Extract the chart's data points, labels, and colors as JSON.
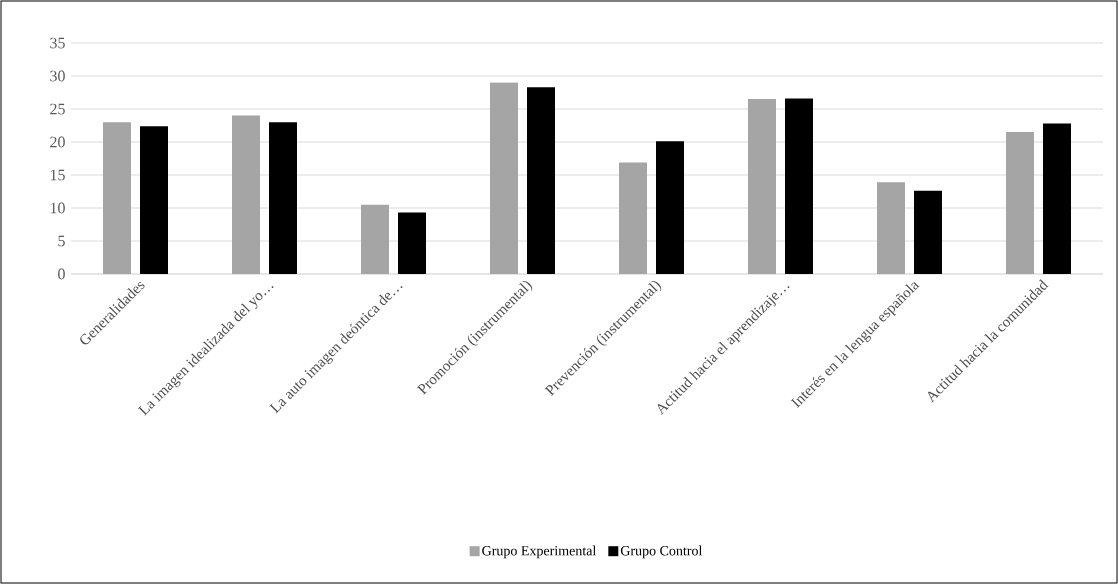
{
  "chart_data": {
    "type": "bar",
    "categories": [
      "Generalidades",
      "La imagen idealizada del yo…",
      "La auto imagen deóntica de…",
      "Promoción (instrumental)",
      "Prevención (instrumental)",
      "Actitud hacia el aprendizaje…",
      "Interés en la lengua española",
      "Actitud hacia la comunidad"
    ],
    "series": [
      {
        "name": "Grupo Experimental",
        "color": "#a5a5a5",
        "values": [
          23,
          24,
          10.5,
          29,
          16.9,
          26.5,
          13.9,
          21.5
        ]
      },
      {
        "name": "Grupo Control",
        "color": "#000000",
        "values": [
          22.4,
          23,
          9.3,
          28.3,
          20.1,
          26.6,
          12.6,
          22.8
        ]
      }
    ],
    "ylim": [
      0,
      35
    ],
    "yticks": [
      0,
      5,
      10,
      15,
      20,
      25,
      30,
      35
    ],
    "grid": "y",
    "legend": "bottom"
  }
}
